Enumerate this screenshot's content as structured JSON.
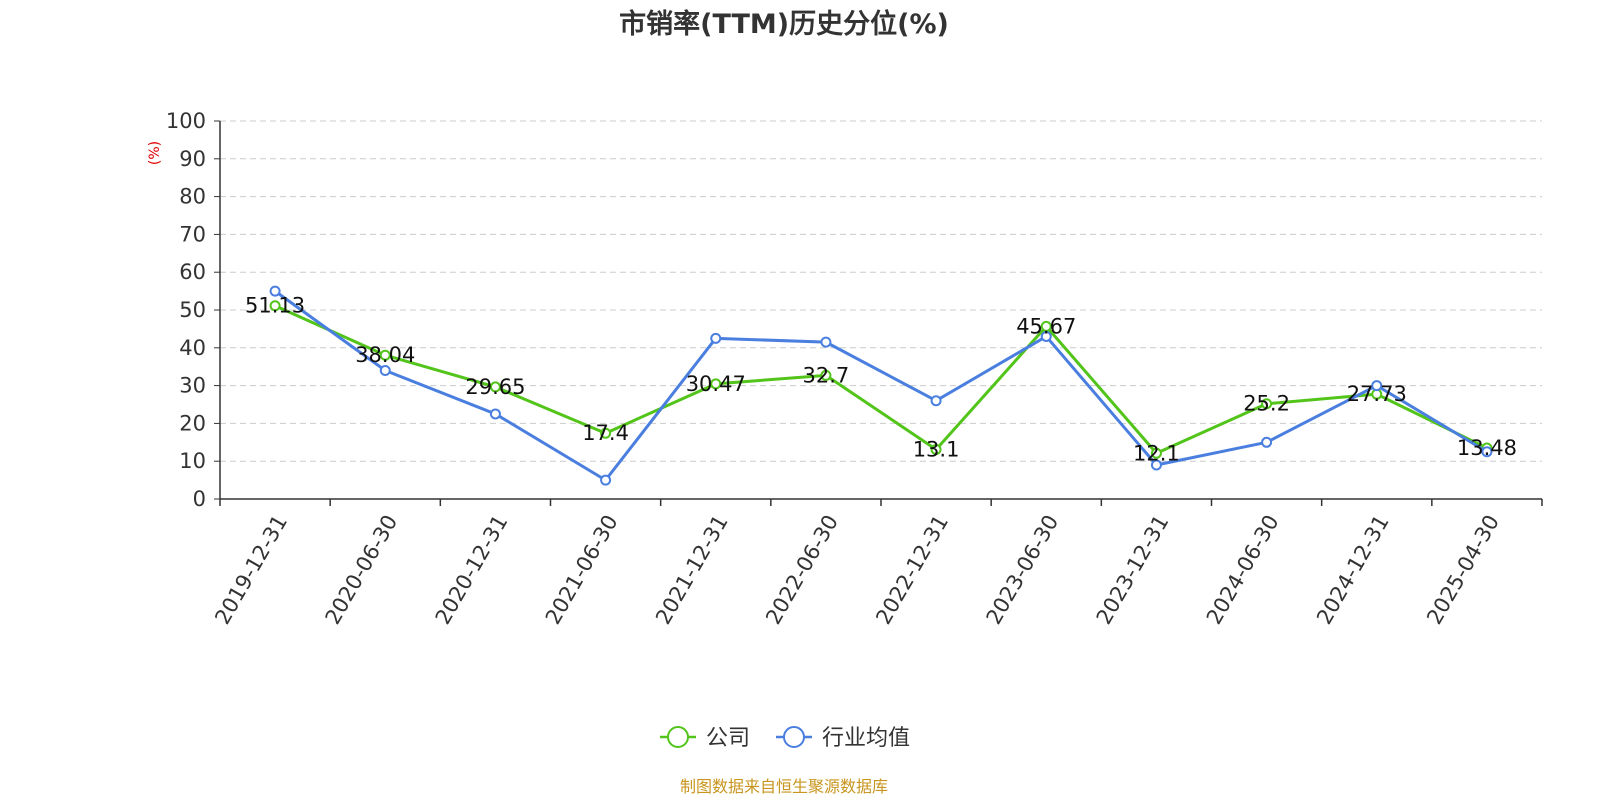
{
  "chart_data": {
    "type": "line",
    "title": "市销率(TTM)历史分位(%)",
    "ylabel": "(%)",
    "xlabel": "",
    "ylim": [
      0,
      100
    ],
    "yticks": [
      0,
      10,
      20,
      30,
      40,
      50,
      60,
      70,
      80,
      90,
      100
    ],
    "grid": true,
    "legend_position": "bottom",
    "categories": [
      "2019-12-31",
      "2020-06-30",
      "2020-12-31",
      "2021-06-30",
      "2021-12-31",
      "2022-06-30",
      "2022-12-31",
      "2023-06-30",
      "2023-12-31",
      "2024-06-30",
      "2024-12-31",
      "2025-04-30"
    ],
    "series": [
      {
        "name": "公司",
        "color": "#52c41a",
        "show_labels": true,
        "values": [
          51.13,
          38.04,
          29.65,
          17.4,
          30.47,
          32.7,
          13.1,
          45.67,
          12.1,
          25.2,
          27.73,
          13.48
        ]
      },
      {
        "name": "行业均值",
        "color": "#4a7fe0",
        "show_labels": false,
        "values": [
          55,
          34,
          22.5,
          5,
          42.5,
          41.5,
          26,
          43,
          9,
          15,
          30,
          12.5
        ]
      }
    ]
  },
  "source": "制图数据来自恒生聚源数据库",
  "colors": {
    "axis": "#333333",
    "grid": "#cccccc",
    "ylabel": "#e00000",
    "source": "#c8961e",
    "title": "#333333"
  }
}
